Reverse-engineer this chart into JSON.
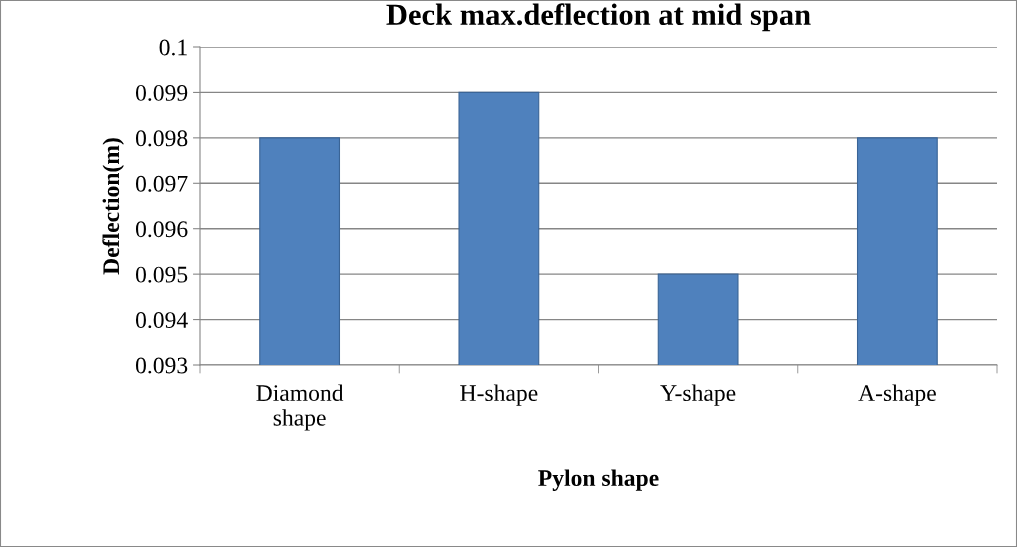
{
  "chart_data": {
    "type": "bar",
    "title": "Deck max.deflection at mid span",
    "xlabel": "Pylon shape",
    "ylabel": "Deflection(m)",
    "categories": [
      "Diamond\nshape",
      "H-shape",
      "Y-shape",
      "A-shape"
    ],
    "values": [
      0.098,
      0.099,
      0.095,
      0.098
    ],
    "color": "#4f81bd",
    "ylim": [
      0.093,
      0.1
    ],
    "yticks": [
      0.093,
      0.094,
      0.095,
      0.096,
      0.097,
      0.098,
      0.099,
      0.1
    ],
    "grid": "y"
  }
}
